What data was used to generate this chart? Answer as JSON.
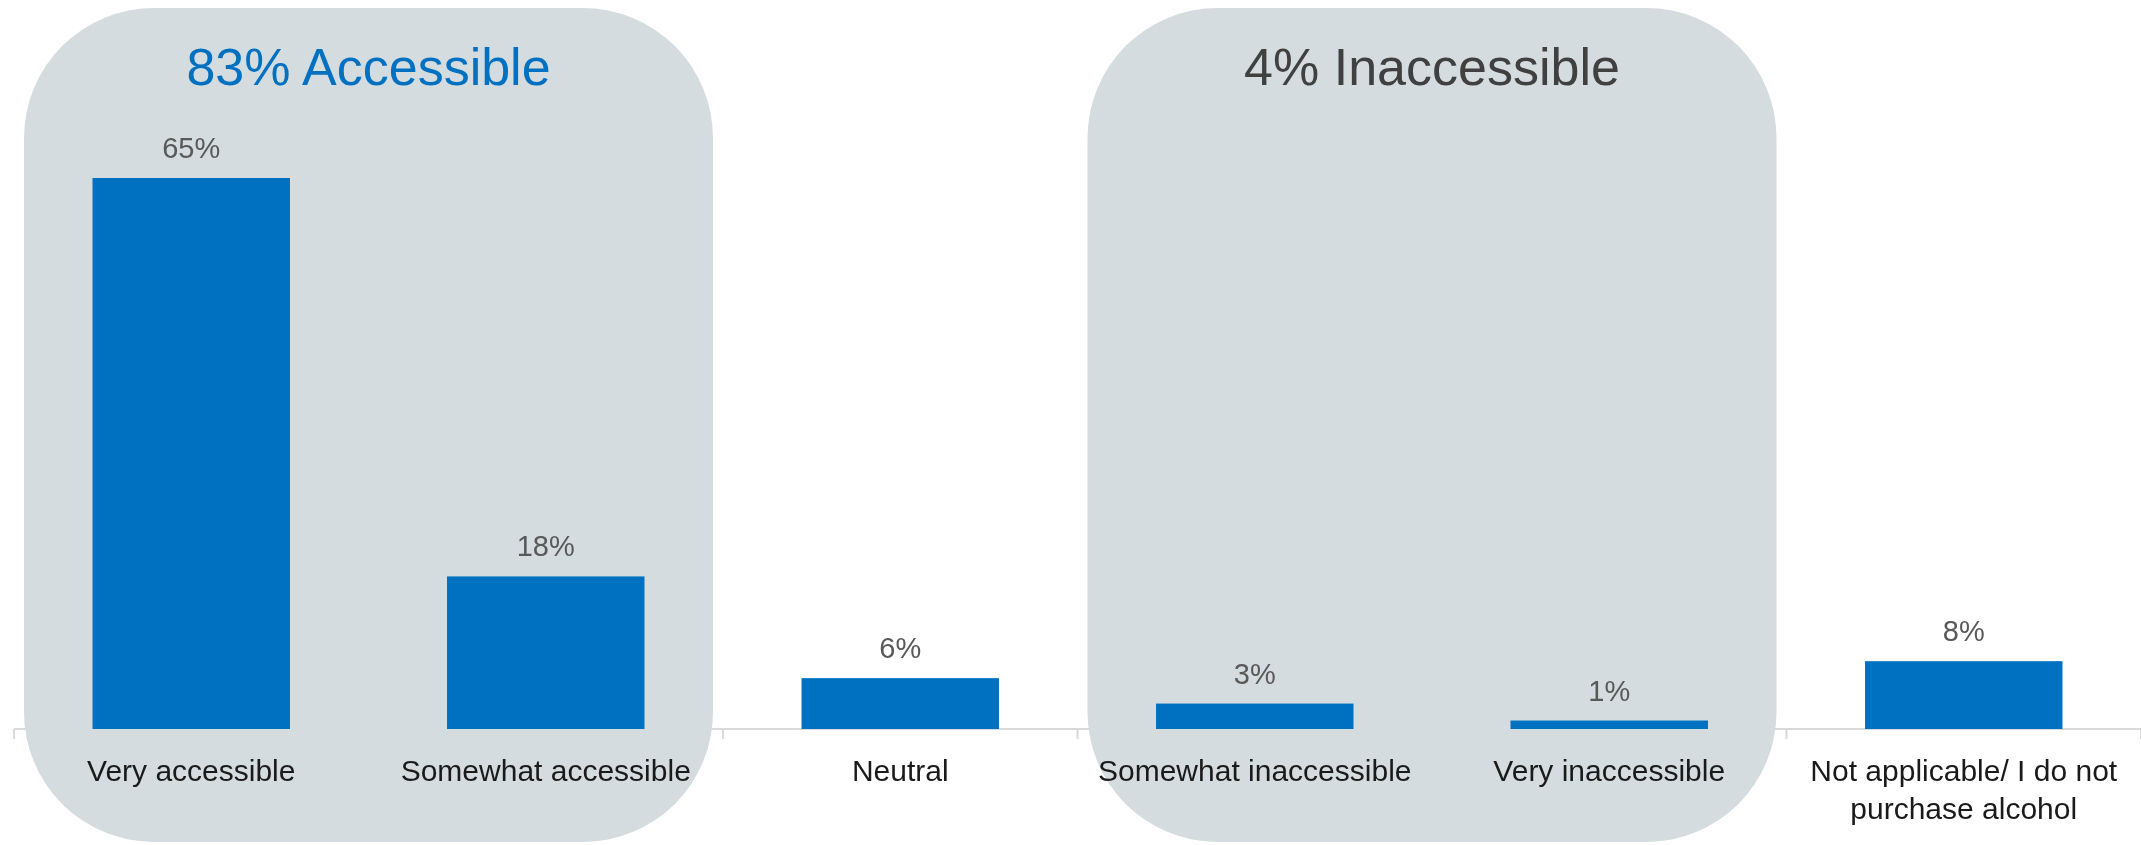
{
  "chart_data": {
    "type": "bar",
    "categories": [
      "Very accessible",
      "Somewhat accessible",
      "Neutral",
      "Somewhat inaccessible",
      "Very inaccessible",
      "Not applicable/ I do not purchase alcohol"
    ],
    "values": [
      65,
      18,
      6,
      3,
      1,
      8
    ],
    "value_labels": [
      "65%",
      "18%",
      "6%",
      "3%",
      "1%",
      "8%"
    ],
    "color": "#0070c0",
    "bands": [
      {
        "axis": "x",
        "from": "Very accessible",
        "to": "Somewhat accessible",
        "label": "83% Accessible",
        "color": "#d4dcdf"
      },
      {
        "axis": "x",
        "from": "Somewhat inaccessible",
        "to": "Very inaccessible",
        "label": "4% Inaccessible",
        "color": "#d4dcdf"
      }
    ]
  }
}
